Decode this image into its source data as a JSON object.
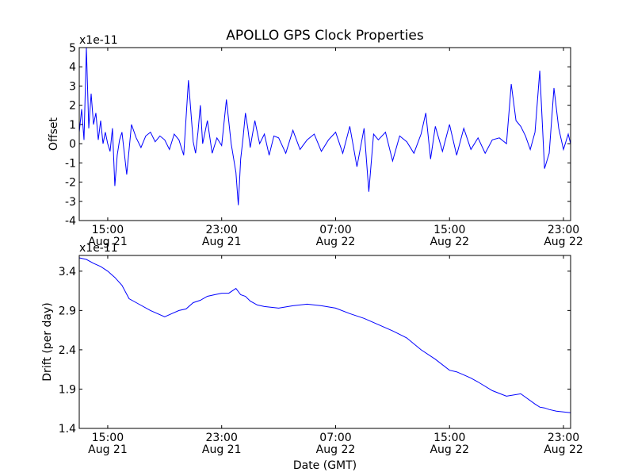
{
  "chart_data": [
    {
      "type": "line",
      "title": "APOLLO GPS Clock Properties",
      "xlabel": "",
      "ylabel": "Offset",
      "y_offset_text": "x1e-11",
      "ylim": [
        -4,
        5
      ],
      "yticks": [
        -4,
        -3,
        -2,
        -1,
        0,
        1,
        2,
        3,
        4,
        5
      ],
      "ytick_labels": [
        "-4",
        "-3",
        "-2",
        "-1",
        "0",
        "1",
        "2",
        "3",
        "4",
        "5"
      ],
      "xlim": [
        "2014-08-21 13:00",
        "2014-08-22 23:30"
      ],
      "xticks": [
        {
          "time": "2014-08-21 15:00",
          "line1": "15:00",
          "line2": "Aug 21"
        },
        {
          "time": "2014-08-21 23:00",
          "line1": "23:00",
          "line2": "Aug 21"
        },
        {
          "time": "2014-08-22 07:00",
          "line1": "07:00",
          "line2": "Aug 22"
        },
        {
          "time": "2014-08-22 15:00",
          "line1": "15:00",
          "line2": "Aug 22"
        },
        {
          "time": "2014-08-22 23:00",
          "line1": "23:00",
          "line2": "Aug 22"
        }
      ],
      "line_color": "#0000ff",
      "grid": false,
      "series": [
        {
          "x": [
            "2014-08-21 13:00",
            "2014-08-21 13:10",
            "2014-08-21 13:20",
            "2014-08-21 13:30",
            "2014-08-21 13:40",
            "2014-08-21 13:50",
            "2014-08-21 14:00",
            "2014-08-21 14:10",
            "2014-08-21 14:20",
            "2014-08-21 14:30",
            "2014-08-21 14:40",
            "2014-08-21 14:50",
            "2014-08-21 15:00",
            "2014-08-21 15:10",
            "2014-08-21 15:20",
            "2014-08-21 15:30",
            "2014-08-21 15:40",
            "2014-08-21 15:50",
            "2014-08-21 16:00",
            "2014-08-21 16:20",
            "2014-08-21 16:40",
            "2014-08-21 17:00",
            "2014-08-21 17:20",
            "2014-08-21 17:40",
            "2014-08-21 18:00",
            "2014-08-21 18:20",
            "2014-08-21 18:40",
            "2014-08-21 19:00",
            "2014-08-21 19:20",
            "2014-08-21 19:40",
            "2014-08-21 20:00",
            "2014-08-21 20:20",
            "2014-08-21 20:40",
            "2014-08-21 21:00",
            "2014-08-21 21:10",
            "2014-08-21 21:20",
            "2014-08-21 21:30",
            "2014-08-21 21:40",
            "2014-08-21 22:00",
            "2014-08-21 22:20",
            "2014-08-21 22:40",
            "2014-08-21 23:00",
            "2014-08-21 23:20",
            "2014-08-21 23:40",
            "2014-08-22 00:00",
            "2014-08-22 00:10",
            "2014-08-22 00:20",
            "2014-08-22 00:30",
            "2014-08-22 00:40",
            "2014-08-22 00:50",
            "2014-08-22 01:00",
            "2014-08-22 01:20",
            "2014-08-22 01:40",
            "2014-08-22 02:00",
            "2014-08-22 02:20",
            "2014-08-22 02:40",
            "2014-08-22 03:00",
            "2014-08-22 03:30",
            "2014-08-22 04:00",
            "2014-08-22 04:30",
            "2014-08-22 05:00",
            "2014-08-22 05:30",
            "2014-08-22 06:00",
            "2014-08-22 06:30",
            "2014-08-22 07:00",
            "2014-08-22 07:30",
            "2014-08-22 08:00",
            "2014-08-22 08:30",
            "2014-08-22 09:00",
            "2014-08-22 09:20",
            "2014-08-22 09:40",
            "2014-08-22 10:00",
            "2014-08-22 10:30",
            "2014-08-22 11:00",
            "2014-08-22 11:30",
            "2014-08-22 12:00",
            "2014-08-22 12:30",
            "2014-08-22 13:00",
            "2014-08-22 13:20",
            "2014-08-22 13:40",
            "2014-08-22 14:00",
            "2014-08-22 14:30",
            "2014-08-22 15:00",
            "2014-08-22 15:30",
            "2014-08-22 16:00",
            "2014-08-22 16:30",
            "2014-08-22 17:00",
            "2014-08-22 17:30",
            "2014-08-22 18:00",
            "2014-08-22 18:30",
            "2014-08-22 19:00",
            "2014-08-22 19:20",
            "2014-08-22 19:40",
            "2014-08-22 20:00",
            "2014-08-22 20:20",
            "2014-08-22 20:40",
            "2014-08-22 21:00",
            "2014-08-22 21:20",
            "2014-08-22 21:40",
            "2014-08-22 22:00",
            "2014-08-22 22:20",
            "2014-08-22 22:40",
            "2014-08-22 23:00",
            "2014-08-22 23:20",
            "2014-08-22 23:30"
          ],
          "y": [
            0.6,
            1.8,
            0.2,
            5.0,
            0.8,
            2.6,
            1.0,
            1.6,
            0.2,
            1.2,
            0.0,
            0.6,
            0.0,
            -0.4,
            0.8,
            -2.2,
            -0.6,
            0.2,
            0.6,
            -1.6,
            1.0,
            0.3,
            -0.2,
            0.4,
            0.6,
            0.1,
            0.4,
            0.2,
            -0.3,
            0.5,
            0.2,
            -0.6,
            3.3,
            0.1,
            -0.5,
            0.6,
            2.0,
            0.0,
            1.2,
            -0.5,
            0.3,
            -0.1,
            2.3,
            0.0,
            -1.5,
            -3.2,
            -0.8,
            0.3,
            1.6,
            0.8,
            -0.2,
            1.2,
            0.0,
            0.5,
            -0.6,
            0.4,
            0.3,
            -0.5,
            0.7,
            -0.3,
            0.2,
            0.5,
            -0.4,
            0.2,
            0.6,
            -0.5,
            0.9,
            -1.2,
            0.8,
            -2.5,
            0.5,
            0.2,
            0.6,
            -0.9,
            0.4,
            0.1,
            -0.5,
            0.5,
            1.6,
            -0.8,
            0.9,
            -0.4,
            1.0,
            -0.6,
            0.8,
            -0.3,
            0.3,
            -0.5,
            0.2,
            0.3,
            0.0,
            3.1,
            1.2,
            0.9,
            0.4,
            -0.3,
            0.6,
            3.8,
            -1.3,
            -0.5,
            2.9,
            0.8,
            -0.3,
            0.5,
            0.0
          ]
        }
      ]
    },
    {
      "type": "line",
      "title": "",
      "xlabel": "Date (GMT)",
      "ylabel": "Drift (per day)",
      "y_offset_text": "x1e-11",
      "ylim": [
        1.4,
        3.6
      ],
      "yticks": [
        1.4,
        1.9,
        2.4,
        2.9,
        3.4
      ],
      "ytick_labels": [
        "1.4",
        "1.9",
        "2.4",
        "2.9",
        "3.4"
      ],
      "xlim": [
        "2014-08-21 13:00",
        "2014-08-22 23:30"
      ],
      "xticks": [
        {
          "time": "2014-08-21 15:00",
          "line1": "15:00",
          "line2": "Aug 21"
        },
        {
          "time": "2014-08-21 23:00",
          "line1": "23:00",
          "line2": "Aug 21"
        },
        {
          "time": "2014-08-22 07:00",
          "line1": "07:00",
          "line2": "Aug 22"
        },
        {
          "time": "2014-08-22 15:00",
          "line1": "15:00",
          "line2": "Aug 22"
        },
        {
          "time": "2014-08-22 23:00",
          "line1": "23:00",
          "line2": "Aug 22"
        }
      ],
      "line_color": "#0000ff",
      "grid": false,
      "series": [
        {
          "x": [
            "2014-08-21 13:00",
            "2014-08-21 13:30",
            "2014-08-21 14:00",
            "2014-08-21 14:30",
            "2014-08-21 15:00",
            "2014-08-21 15:30",
            "2014-08-21 16:00",
            "2014-08-21 16:30",
            "2014-08-21 17:00",
            "2014-08-21 18:00",
            "2014-08-21 19:00",
            "2014-08-21 19:30",
            "2014-08-21 20:00",
            "2014-08-21 20:30",
            "2014-08-21 21:00",
            "2014-08-21 21:30",
            "2014-08-21 22:00",
            "2014-08-21 22:30",
            "2014-08-21 23:00",
            "2014-08-21 23:30",
            "2014-08-22 00:00",
            "2014-08-22 00:20",
            "2014-08-22 00:40",
            "2014-08-22 01:00",
            "2014-08-22 01:30",
            "2014-08-22 02:00",
            "2014-08-22 03:00",
            "2014-08-22 04:00",
            "2014-08-22 05:00",
            "2014-08-22 06:00",
            "2014-08-22 07:00",
            "2014-08-22 08:00",
            "2014-08-22 09:00",
            "2014-08-22 10:00",
            "2014-08-22 11:00",
            "2014-08-22 12:00",
            "2014-08-22 13:00",
            "2014-08-22 14:00",
            "2014-08-22 15:00",
            "2014-08-22 15:30",
            "2014-08-22 16:00",
            "2014-08-22 16:30",
            "2014-08-22 17:00",
            "2014-08-22 18:00",
            "2014-08-22 19:00",
            "2014-08-22 20:00",
            "2014-08-22 21:00",
            "2014-08-22 21:20",
            "2014-08-22 21:40",
            "2014-08-22 22:00",
            "2014-08-22 22:30",
            "2014-08-22 23:00",
            "2014-08-22 23:30"
          ],
          "y": [
            3.57,
            3.55,
            3.5,
            3.46,
            3.4,
            3.32,
            3.22,
            3.05,
            3.0,
            2.9,
            2.82,
            2.86,
            2.9,
            2.92,
            3.0,
            3.03,
            3.08,
            3.1,
            3.12,
            3.12,
            3.18,
            3.1,
            3.08,
            3.02,
            2.97,
            2.95,
            2.93,
            2.96,
            2.98,
            2.96,
            2.93,
            2.86,
            2.8,
            2.72,
            2.64,
            2.55,
            2.4,
            2.28,
            2.14,
            2.12,
            2.08,
            2.04,
            1.99,
            1.88,
            1.81,
            1.84,
            1.71,
            1.67,
            1.66,
            1.64,
            1.62,
            1.61,
            1.6
          ]
        }
      ]
    }
  ]
}
